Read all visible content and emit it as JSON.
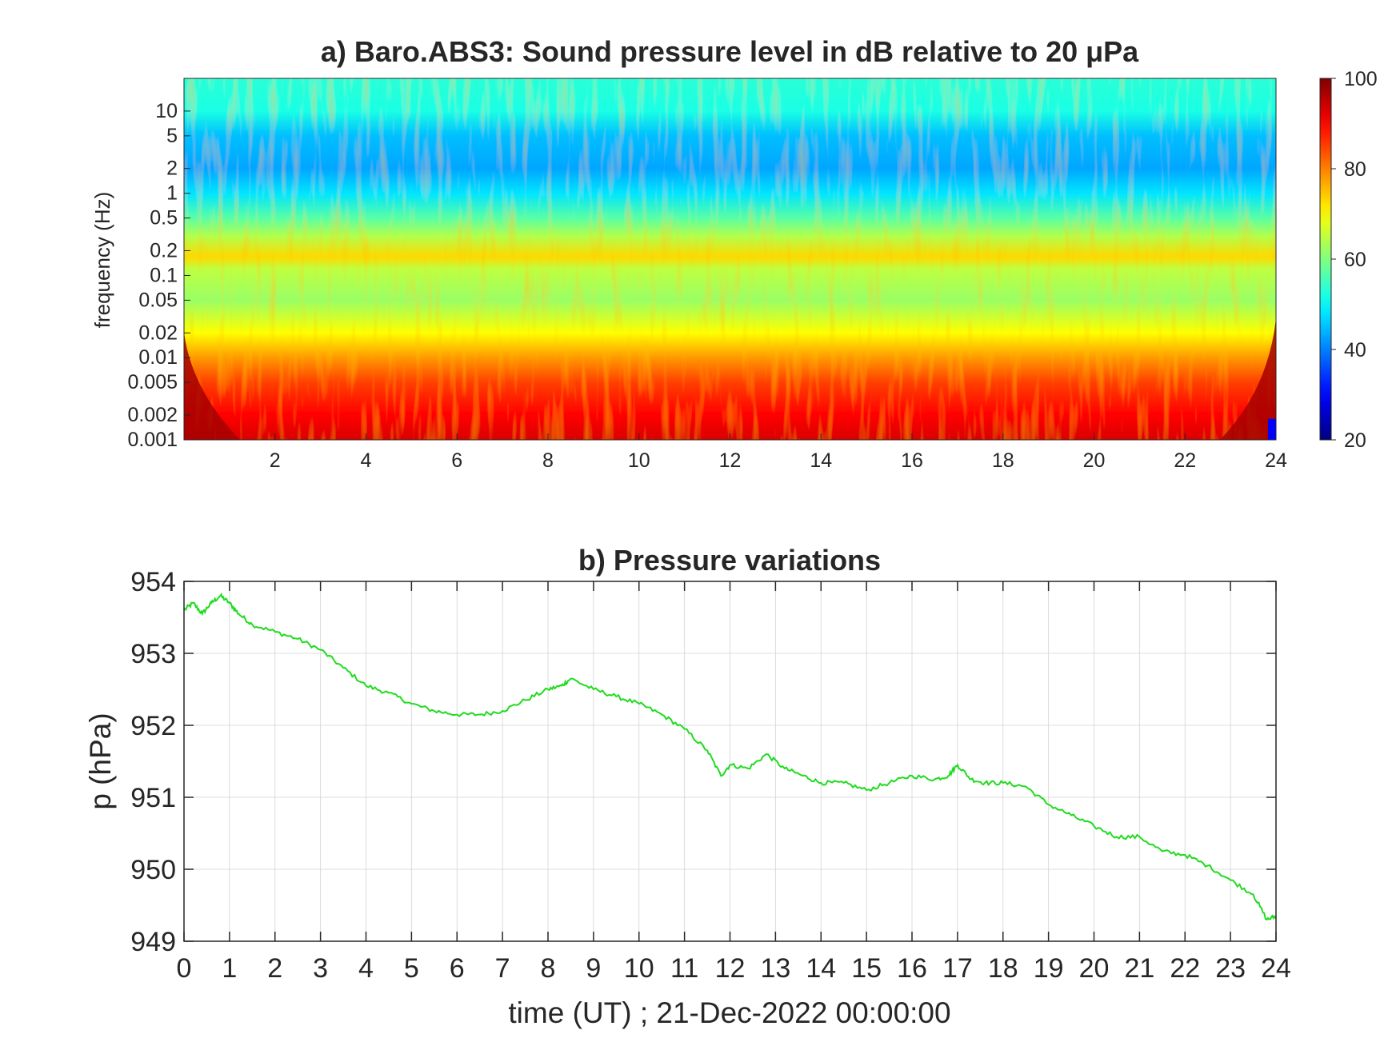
{
  "chart_data": [
    {
      "type": "heatmap",
      "panel": "a",
      "title": "a) Baro.ABS3: Sound pressure level in dB relative to 20 μPa",
      "xlabel": "",
      "ylabel": "frequency (Hz)",
      "xlim": [
        0,
        24
      ],
      "x_ticks": [
        2,
        4,
        6,
        8,
        10,
        12,
        14,
        16,
        18,
        20,
        22,
        24
      ],
      "ylim": [
        0.001,
        25
      ],
      "yscale": "log",
      "y_ticks": [
        0.001,
        0.002,
        0.005,
        0.01,
        0.02,
        0.05,
        0.1,
        0.2,
        0.5,
        1,
        2,
        5,
        10
      ],
      "y_tick_labels": [
        "0.001",
        "0.002",
        "0.005",
        "0.01",
        "0.02",
        "0.05",
        "0.1",
        "0.2",
        "0.5",
        "1",
        "2",
        "5",
        "10"
      ],
      "colormap": "jet",
      "clim": [
        20,
        100
      ],
      "colorbar_ticks": [
        20,
        40,
        60,
        80,
        100
      ],
      "approx_levels_db": [
        {
          "frequency_hz": 0.001,
          "level": 93
        },
        {
          "frequency_hz": 0.002,
          "level": 90
        },
        {
          "frequency_hz": 0.005,
          "level": 85
        },
        {
          "frequency_hz": 0.01,
          "level": 78
        },
        {
          "frequency_hz": 0.02,
          "level": 70
        },
        {
          "frequency_hz": 0.05,
          "level": 62
        },
        {
          "frequency_hz": 0.12,
          "level": 65
        },
        {
          "frequency_hz": 0.17,
          "level": 73
        },
        {
          "frequency_hz": 0.3,
          "level": 64
        },
        {
          "frequency_hz": 0.5,
          "level": 57
        },
        {
          "frequency_hz": 1,
          "level": 48
        },
        {
          "frequency_hz": 2,
          "level": 43
        },
        {
          "frequency_hz": 5,
          "level": 45
        },
        {
          "frequency_hz": 10,
          "level": 52
        },
        {
          "frequency_hz": 20,
          "level": 53
        }
      ],
      "grid": false
    },
    {
      "type": "line",
      "panel": "b",
      "title": "b) Pressure variations",
      "xlabel": "time (UT) ; 21-Dec-2022 00:00:00",
      "ylabel": "p (hPa)",
      "xlim": [
        0,
        24
      ],
      "ylim": [
        949,
        954
      ],
      "x_ticks": [
        0,
        1,
        2,
        3,
        4,
        5,
        6,
        7,
        8,
        9,
        10,
        11,
        12,
        13,
        14,
        15,
        16,
        17,
        18,
        19,
        20,
        21,
        22,
        23,
        24
      ],
      "y_ticks": [
        949,
        950,
        951,
        952,
        953,
        954
      ],
      "grid": true,
      "color": "#1fdc1f",
      "series": [
        {
          "x": [
            0,
            0.2,
            0.4,
            0.6,
            0.8,
            1.0,
            1.2,
            1.5,
            2.0,
            2.5,
            3.0,
            3.5,
            4.0,
            4.5,
            5.0,
            5.5,
            6.0,
            6.5,
            7.0,
            7.5,
            8.0,
            8.3,
            8.5,
            9.0,
            9.5,
            10.0,
            10.5,
            11.0,
            11.5,
            11.8,
            12.0,
            12.4,
            12.8,
            13.2,
            13.6,
            14.0,
            14.5,
            15.0,
            15.5,
            16.0,
            16.5,
            16.8,
            17.0,
            17.3,
            17.6,
            18.0,
            18.5,
            19.0,
            19.5,
            20.0,
            20.5,
            21.0,
            21.5,
            22.0,
            22.5,
            23.0,
            23.5,
            23.8,
            24.0
          ],
          "y": [
            953.6,
            953.7,
            953.55,
            953.7,
            953.8,
            953.7,
            953.55,
            953.4,
            953.3,
            953.2,
            953.05,
            952.8,
            952.55,
            952.45,
            952.3,
            952.2,
            952.15,
            952.15,
            952.2,
            952.35,
            952.5,
            952.55,
            952.65,
            952.5,
            952.4,
            952.3,
            952.15,
            951.95,
            951.65,
            951.3,
            951.45,
            951.4,
            951.6,
            951.4,
            951.3,
            951.2,
            951.2,
            951.1,
            951.2,
            951.3,
            951.25,
            951.3,
            951.45,
            951.25,
            951.2,
            951.2,
            951.15,
            950.9,
            950.75,
            950.6,
            950.45,
            950.45,
            950.25,
            950.2,
            950.05,
            949.85,
            949.65,
            949.3,
            949.35
          ]
        }
      ]
    }
  ]
}
